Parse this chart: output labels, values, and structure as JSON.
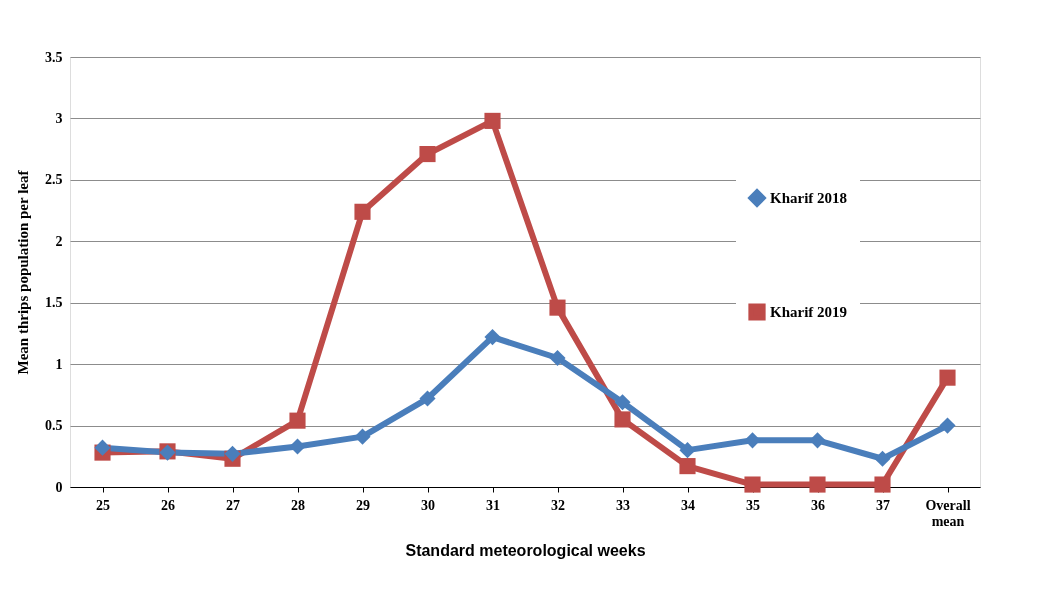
{
  "chart_data": {
    "type": "line",
    "xlabel": "Standard meteorological weeks",
    "ylabel": "Mean  thrips  population   per  leaf",
    "categories": [
      "25",
      "26",
      "27",
      "28",
      "29",
      "30",
      "31",
      "32",
      "33",
      "34",
      "35",
      "36",
      "37",
      "Overall mean"
    ],
    "series": [
      {
        "name": "Kharif 2018",
        "color": "#4a7ebb",
        "marker": "diamond",
        "values": [
          0.32,
          0.28,
          0.27,
          0.33,
          0.41,
          0.72,
          1.22,
          1.05,
          0.69,
          0.3,
          0.38,
          0.38,
          0.23,
          0.5
        ]
      },
      {
        "name": "Kharif 2019",
        "color": "#be4b48",
        "marker": "square",
        "values": [
          0.28,
          0.29,
          0.23,
          0.54,
          2.24,
          2.71,
          2.98,
          1.46,
          0.55,
          0.17,
          0.02,
          0.02,
          0.02,
          0.89
        ]
      }
    ],
    "ylim": [
      0,
      3.5
    ],
    "yticks": [
      0,
      0.5,
      1,
      1.5,
      2,
      2.5,
      3,
      3.5
    ],
    "grid": "y",
    "legend": "top right",
    "line_style": "solid"
  }
}
